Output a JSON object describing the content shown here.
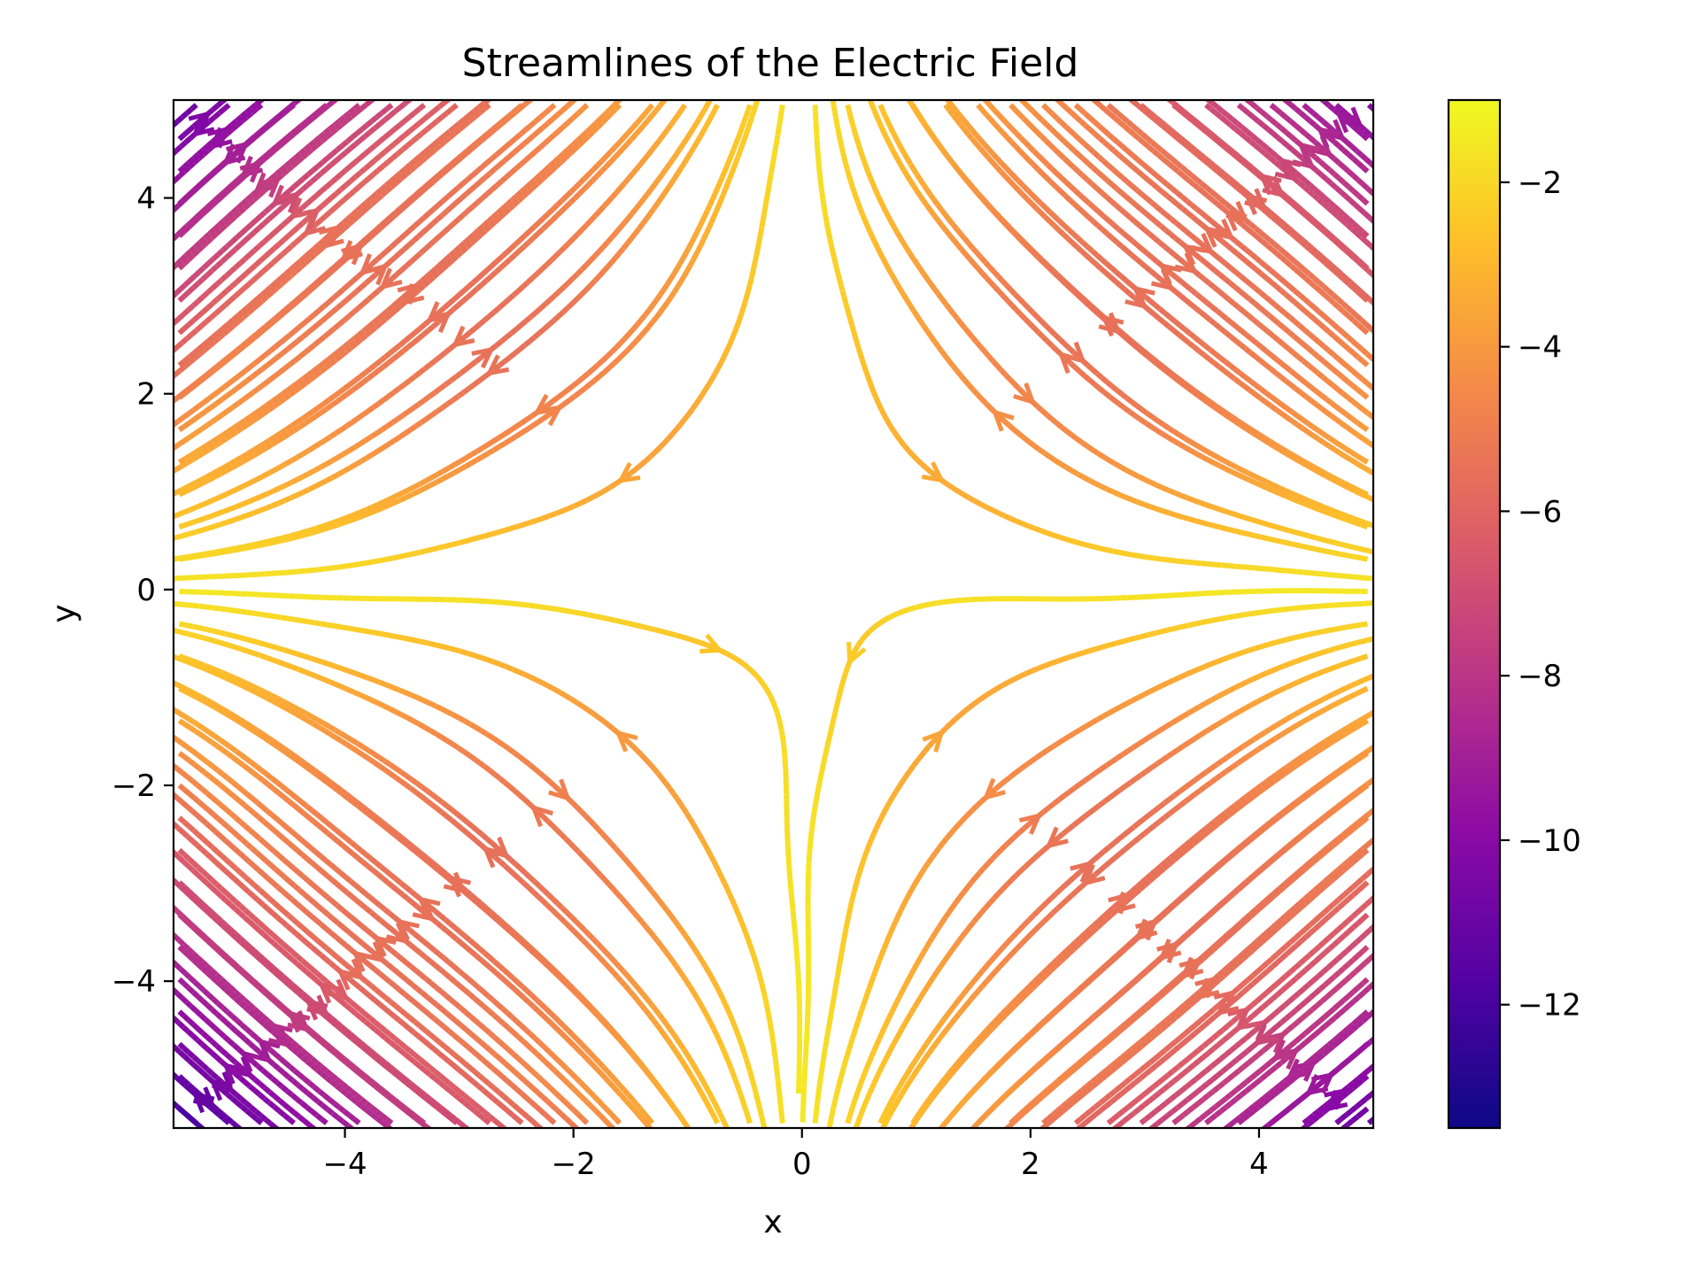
{
  "chart_data": {
    "type": "streamplot",
    "title": "Streamlines of the Electric Field",
    "xlabel": "x",
    "ylabel": "y",
    "xlim": [
      -5.5,
      5.0
    ],
    "ylim": [
      -5.5,
      5.0
    ],
    "x_ticks": [
      -4,
      -2,
      0,
      2,
      4
    ],
    "y_ticks": [
      -4,
      -2,
      0,
      2,
      4
    ],
    "x_tick_labels": [
      "−4",
      "−2",
      "0",
      "2",
      "4"
    ],
    "y_tick_labels": [
      "−4",
      "−2",
      "0",
      "2",
      "4"
    ],
    "grid": false,
    "colormap": "plasma",
    "colorbar": {
      "range": [
        -13.5,
        -1.0
      ],
      "ticks": [
        -2,
        -4,
        -6,
        -8,
        -10,
        -12
      ],
      "tick_labels": [
        "−2",
        "−4",
        "−6",
        "−8",
        "−10",
        "−12"
      ],
      "colors": [
        "#0d0887",
        "#5302a3",
        "#8b0aa5",
        "#b83289",
        "#db5c68",
        "#f48849",
        "#febd2a",
        "#f0f921"
      ]
    },
    "field": {
      "description_of_structure": "saddle-like X pattern centered near origin",
      "color_variable_range": [
        -13.5,
        -1.0
      ]
    }
  }
}
